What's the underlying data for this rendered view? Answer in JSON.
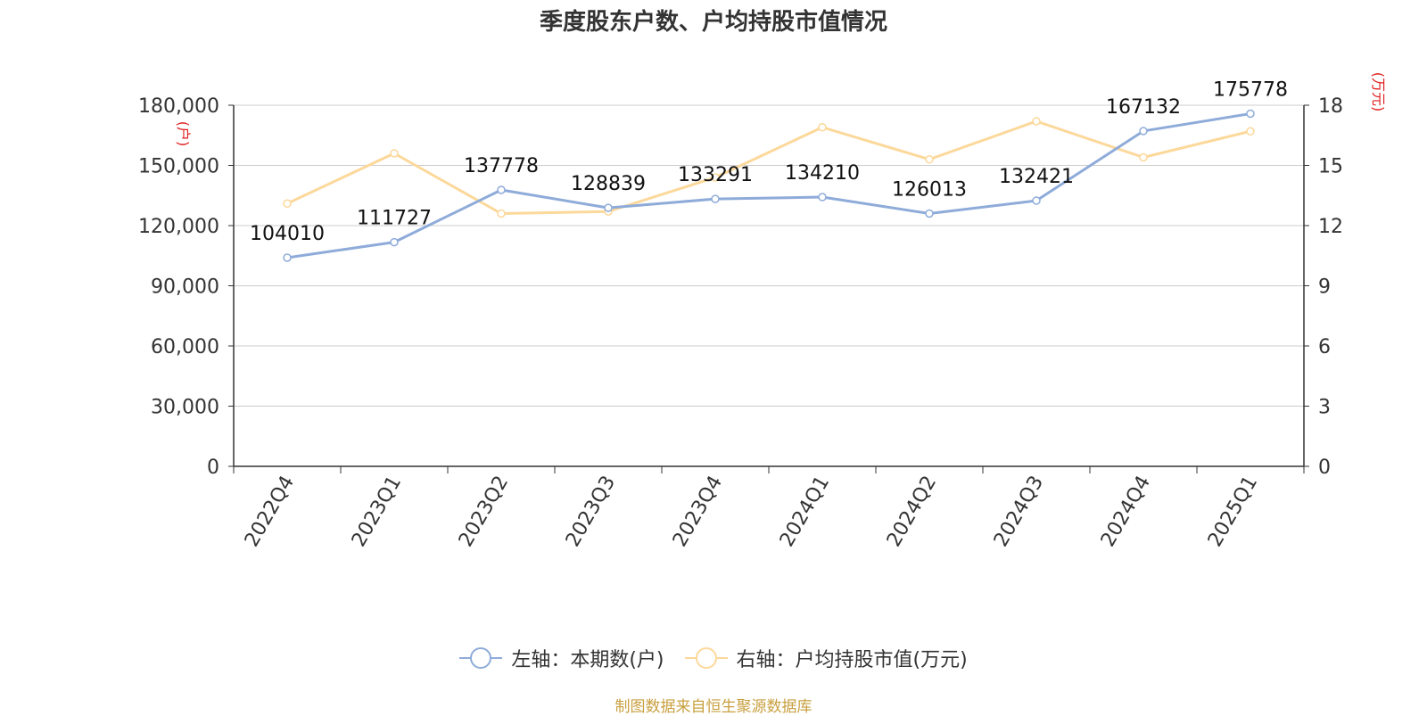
{
  "title": "季度股东户数、户均持股市值情况",
  "source": "制图数据来自恒生聚源数据库",
  "colors": {
    "left_series": "#8eabd9",
    "right_series": "#fcd89a",
    "unit_label": "#e02020"
  },
  "legend": [
    {
      "label": "左轴：本期数(户)",
      "color": "#8eabd9"
    },
    {
      "label": "右轴：户均持股市值(万元)",
      "color": "#fcd89a"
    }
  ],
  "chart_data": {
    "type": "line",
    "categories": [
      "2022Q4",
      "2023Q1",
      "2023Q2",
      "2023Q3",
      "2023Q4",
      "2024Q1",
      "2024Q2",
      "2024Q3",
      "2024Q4",
      "2025Q1"
    ],
    "y_left": {
      "unit_label": "(户)",
      "range": [
        0,
        180000
      ],
      "ticks": [
        0,
        30000,
        60000,
        90000,
        120000,
        150000,
        180000
      ],
      "tick_labels": [
        "0",
        "30,000",
        "60,000",
        "90,000",
        "120,000",
        "150,000",
        "180,000"
      ]
    },
    "y_right": {
      "unit_label": "(万元)",
      "range": [
        0,
        18
      ],
      "ticks": [
        0,
        3,
        6,
        9,
        12,
        15,
        18
      ],
      "tick_labels": [
        "0",
        "3",
        "6",
        "9",
        "12",
        "15",
        "18"
      ]
    },
    "grid": true,
    "legend_position": "bottom",
    "series": [
      {
        "name": "左轴：本期数(户)",
        "axis": "left",
        "values": [
          104010,
          111727,
          137778,
          128839,
          133291,
          134210,
          126013,
          132421,
          167132,
          175778
        ],
        "labels": [
          "104010",
          "111727",
          "137778",
          "128839",
          "133291",
          "134210",
          "126013",
          "132421",
          "167132",
          "175778"
        ]
      },
      {
        "name": "右轴：户均持股市值(万元)",
        "axis": "right",
        "values": [
          13.1,
          15.6,
          12.6,
          12.7,
          14.4,
          16.9,
          15.3,
          17.2,
          15.4,
          16.7
        ]
      }
    ]
  }
}
